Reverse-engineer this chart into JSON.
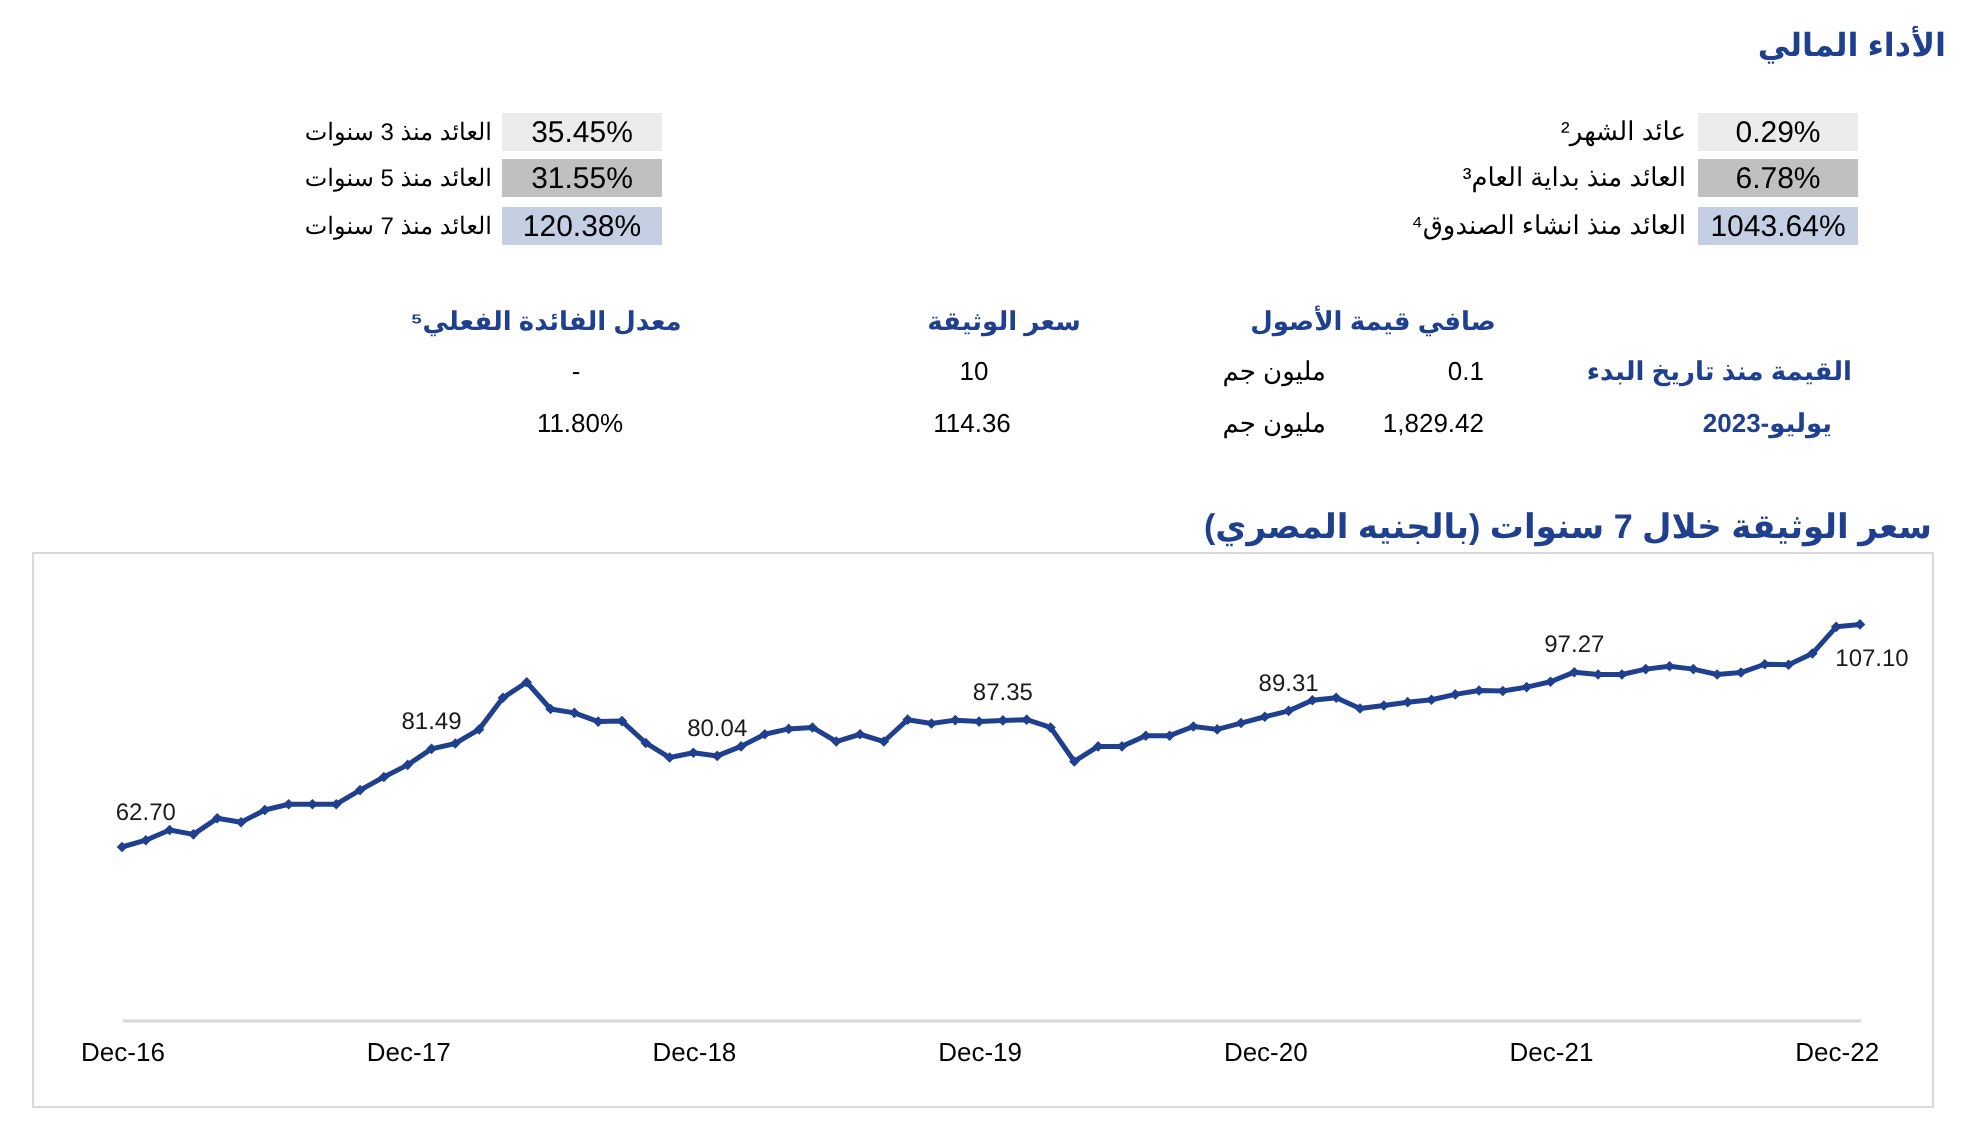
{
  "chart_data": [
    {
      "type": "other",
      "title": "الأداء المالي",
      "annotations": [
        "عائد الشهر²",
        "0.29%",
        "العائد منذ 3 سنوات",
        "35.45%",
        "العائد منذ بداية العام³",
        "6.78%",
        "العائد منذ 5 سنوات",
        "31.55%",
        "العائد منذ انشاء الصندوق⁴",
        "1043.64%",
        "العائد منذ 7 سنوات",
        "120.38%",
        "صافي قيمة الأصول",
        "سعر الوثيقة",
        "معدل الفائدة الفعلي⁵",
        "القيمة منذ تاريخ البدء",
        "0.1",
        "مليون جم",
        "10",
        "-",
        "يوليو-2023",
        "1,829.42",
        "مليون جم",
        "114.36",
        "11.80%"
      ]
    },
    {
      "type": "line",
      "title": "سعر الوثيقة خلال 7 سنوات (بالجنيه المصري)",
      "categories": [
        "Dec-16",
        null,
        null,
        null,
        null,
        null,
        null,
        null,
        null,
        null,
        null,
        null,
        "Dec-17",
        null,
        null,
        null,
        null,
        null,
        null,
        null,
        null,
        null,
        null,
        null,
        "Dec-18",
        null,
        null,
        null,
        null,
        null,
        null,
        null,
        null,
        null,
        null,
        null,
        "Dec-19",
        null,
        null,
        null,
        null,
        null,
        null,
        null,
        null,
        null,
        null,
        null,
        "Dec-20",
        null,
        null,
        null,
        null,
        null,
        null,
        null,
        null,
        null,
        null,
        null,
        "Dec-21",
        null,
        null,
        null,
        null,
        null,
        null,
        null,
        null,
        null,
        null,
        null,
        "Dec-22",
        null
      ],
      "values": [
        61.3,
        62.7,
        64.8,
        63.9,
        67.2,
        66.4,
        68.9,
        70.1,
        70.1,
        70.1,
        73.0,
        75.7,
        78.2,
        81.49,
        82.6,
        85.5,
        92.0,
        95.2,
        89.7,
        88.9,
        87.1,
        87.2,
        82.7,
        79.7,
        80.7,
        80.04,
        82.0,
        84.5,
        85.6,
        85.9,
        83.0,
        84.5,
        83.0,
        87.5,
        86.7,
        87.4,
        87.1,
        87.35,
        87.5,
        85.9,
        78.9,
        82.0,
        82.0,
        84.2,
        84.2,
        86.1,
        85.5,
        86.8,
        88.1,
        89.31,
        91.5,
        92.0,
        89.8,
        90.4,
        91.1,
        91.6,
        92.7,
        93.5,
        93.4,
        94.2,
        95.3,
        97.27,
        96.8,
        96.8,
        97.9,
        98.5,
        97.9,
        96.8,
        97.2,
        98.9,
        98.8,
        101.1,
        106.6,
        107.1
      ],
      "value_labels": [
        null,
        "62.70",
        null,
        null,
        null,
        null,
        null,
        null,
        null,
        null,
        null,
        null,
        null,
        "81.49",
        null,
        null,
        null,
        null,
        null,
        null,
        null,
        null,
        null,
        null,
        null,
        "80.04",
        null,
        null,
        null,
        null,
        null,
        null,
        null,
        null,
        null,
        null,
        null,
        "87.35",
        null,
        null,
        null,
        null,
        null,
        null,
        null,
        null,
        null,
        null,
        null,
        "89.31",
        null,
        null,
        null,
        null,
        null,
        null,
        null,
        null,
        null,
        null,
        null,
        "97.27",
        null,
        null,
        null,
        null,
        null,
        null,
        null,
        null,
        null,
        null,
        null,
        "107.10"
      ],
      "color": "#1f3f8f",
      "ylim": [
        8,
        122
      ],
      "tick_labels": "x",
      "marker": "diamond",
      "line_style": "solid"
    }
  ]
}
